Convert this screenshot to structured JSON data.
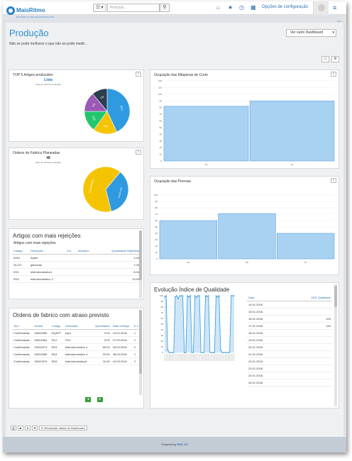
{
  "header": {
    "logo_name": "MaisRitmo",
    "logo_tagline": "EFICIÊNCIA DE MAQUINARIA IND.",
    "view_button": "☷ ▾",
    "search_placeholder": "Procurar...",
    "config_label": "Opções de configuração"
  },
  "page": {
    "title": "Produção",
    "subtitle": "Não se pode melhorar o que não se pode medir...",
    "user_tag": "user",
    "dashboard_select": "Ver outro Dashboard"
  },
  "top5": {
    "title": "TOP 5 Artigos produzidos",
    "main_label": "Lista",
    "sub_label": "(face ao total de produção)",
    "chart_data": {
      "type": "pie",
      "categories": [
        "ED4",
        "EQ4",
        "ED5",
        "EQ",
        "GB"
      ],
      "values": [
        43,
        17,
        15,
        14,
        11
      ],
      "colors": [
        "#2f9ae0",
        "#f5c400",
        "#22c76d",
        "#9b59b6",
        "#2c3e50"
      ]
    }
  },
  "orders_planned": {
    "title": "Ordens de Fabrico Planeadas",
    "main_label": "48",
    "sub_label": "(face ao total de produção)",
    "chart_data": {
      "type": "pie",
      "categories": [
        "Em curso",
        "Confirmadas"
      ],
      "values": [
        35,
        65
      ],
      "colors": [
        "#2f9ae0",
        "#f5c400"
      ]
    }
  },
  "cut_machines": {
    "title": "Ocupação das Máquinas de Corte",
    "chart_data": {
      "type": "bar",
      "categories": [
        "C1",
        "C2"
      ],
      "values": [
        82,
        90
      ],
      "ylim": [
        0,
        120
      ],
      "yticks": [
        "0",
        "10",
        "20",
        "30",
        "40",
        "50",
        "60",
        "70",
        "80",
        "90",
        "100",
        "110",
        "120"
      ]
    }
  },
  "presses": {
    "title": "Ocupação das Prensas",
    "chart_data": {
      "type": "bar",
      "categories": [
        "P6",
        "P8",
        "P7"
      ],
      "values": [
        60,
        71,
        40
      ],
      "ylim": [
        0,
        100
      ],
      "yticks": [
        "0",
        "10",
        "20",
        "30",
        "40",
        "50",
        "60",
        "70",
        "80",
        "90",
        "100"
      ]
    }
  },
  "rejects": {
    "title": "Artigos com mais rejeições",
    "subtitle": "Artigos com mais rejeições",
    "columns": [
      "Código",
      "Descrição",
      "Cor",
      "Tamanho",
      "Quantidade Rejeitada"
    ],
    "rows": [
      [
        "A001",
        "Adufe",
        "",
        "",
        "1.00"
      ],
      [
        "GLCH",
        "galochas",
        "",
        "",
        "1.00"
      ],
      [
        "ED1",
        "eletrodoméstico1",
        "",
        "",
        "8.00"
      ],
      [
        "ED3",
        "eletrodoméstico 3",
        "",
        "",
        "13.00"
      ]
    ]
  },
  "delayed": {
    "title": "Ordens de fabrico com atraso previsto",
    "columns": [
      "Tipo",
      "Numof",
      "Código",
      "Descrição",
      "Quantidade",
      "Data entrega",
      "D c"
    ],
    "rows": [
      [
        "Confirmadas",
        "00002065",
        "EQAFF",
        "equf",
        "3.00",
        "13.04.2018",
        "1"
      ],
      [
        "Confirmadas",
        "00002064",
        "PU1",
        "PU1",
        "5.00",
        "07.03.2016",
        "1"
      ],
      [
        "Confirmadas",
        "00002073",
        "ED4",
        "eletrodoméstico 4",
        "65.00",
        "18.03.2016",
        "2"
      ],
      [
        "Confirmadas",
        "00002085",
        "ED4",
        "eletrodoméstico 4",
        "20.00",
        "28.03.2016",
        "1"
      ],
      [
        "Confirmadas",
        "00002076",
        "ED6",
        "eletrodoméstico6",
        "10.00",
        "19.03.2016",
        "2"
      ]
    ]
  },
  "quality": {
    "title": "Evolução Índice de Qualidade",
    "columns": [
      "Data",
      "OEE Qualidade"
    ],
    "rows": [
      [
        "14.01.2018",
        ""
      ],
      [
        "15.01.2018",
        ""
      ],
      [
        "16.01.2018",
        "100"
      ],
      [
        "17.01.2018",
        "100"
      ],
      [
        "18.01.2018",
        ""
      ],
      [
        "19.01.2018",
        ""
      ],
      [
        "20.01.2018",
        ""
      ],
      [
        "21.01.2018",
        ""
      ],
      [
        "22.01.2018",
        ""
      ],
      [
        "23.01.2018",
        ""
      ],
      [
        "24.01.2018",
        ""
      ],
      [
        "25.01.2018",
        ""
      ]
    ],
    "chart_data": {
      "type": "area",
      "ylim": [
        0,
        100
      ],
      "yticks": [
        "0",
        "10",
        "20",
        "30",
        "40",
        "50",
        "60",
        "70",
        "80",
        "90",
        "100"
      ],
      "values": [
        98,
        100,
        5,
        0,
        0,
        0,
        0,
        98,
        100,
        95,
        100,
        100,
        100,
        0,
        0,
        100,
        98,
        100,
        0,
        0,
        100,
        97,
        100,
        100,
        0,
        0,
        0,
        100,
        99,
        100,
        0,
        0,
        0,
        0,
        100,
        98,
        100,
        5,
        0,
        0,
        0,
        0,
        0,
        0,
        100,
        100,
        100
      ]
    }
  },
  "footer": {
    "recalc_label": "Recalcular dados do Dashboard",
    "powered_prefix": "Powered by",
    "powered_brand": "PHC CS"
  }
}
